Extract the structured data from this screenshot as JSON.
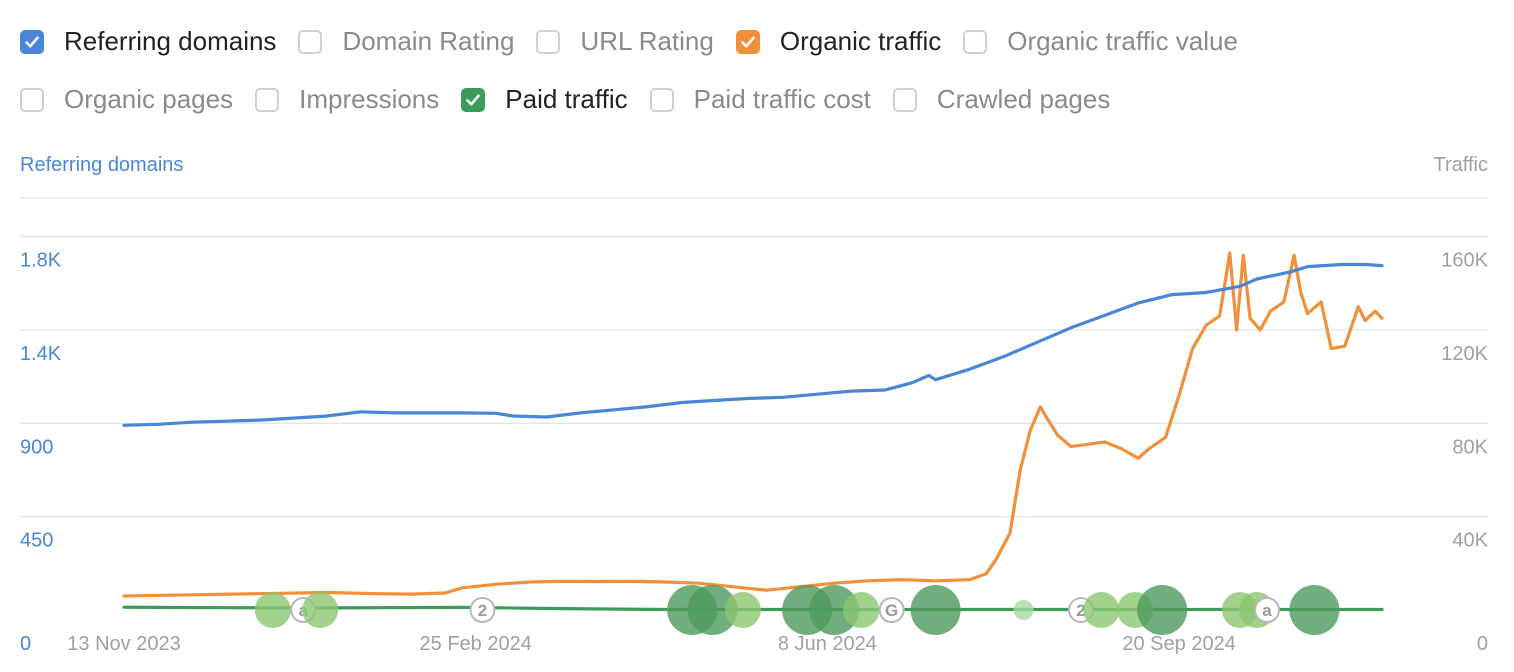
{
  "metrics_row1": [
    {
      "label": "Referring domains",
      "checked": true,
      "color": "#4a86d8"
    },
    {
      "label": "Domain Rating",
      "checked": false,
      "color": "#d0d0d0"
    },
    {
      "label": "URL Rating",
      "checked": false,
      "color": "#d0d0d0"
    },
    {
      "label": "Organic traffic",
      "checked": true,
      "color": "#f0903a"
    },
    {
      "label": "Organic traffic value",
      "checked": false,
      "color": "#d0d0d0"
    }
  ],
  "metrics_row2": [
    {
      "label": "Organic pages",
      "checked": false,
      "color": "#d0d0d0"
    },
    {
      "label": "Impressions",
      "checked": false,
      "color": "#d0d0d0"
    },
    {
      "label": "Paid traffic",
      "checked": true,
      "color": "#3e9a5a"
    },
    {
      "label": "Paid traffic cost",
      "checked": false,
      "color": "#d0d0d0"
    },
    {
      "label": "Crawled pages",
      "checked": false,
      "color": "#d0d0d0"
    }
  ],
  "chart_data": {
    "type": "line",
    "left_axis_title": "Referring domains",
    "right_axis_title": "Traffic",
    "left_ticks": [
      "0",
      "450",
      "900",
      "1.4K",
      "1.8K"
    ],
    "left_tick_values": [
      0,
      450,
      900,
      1350,
      1800
    ],
    "right_ticks": [
      "0",
      "40K",
      "80K",
      "120K",
      "160K"
    ],
    "right_tick_values": [
      0,
      40000,
      80000,
      120000,
      160000
    ],
    "x_ticks": [
      "13 Nov 2023",
      "25 Feb 2024",
      "8 Jun 2024",
      "20 Sep 2024"
    ],
    "x_tick_days": [
      0,
      104,
      208,
      312
    ],
    "x_range_days": [
      -15,
      380
    ],
    "grid": true,
    "colors": {
      "referring_domains": "#4a86d8",
      "organic_traffic": "#f0903a",
      "paid_traffic": "#3e9a5a",
      "left_axis": "#4a86d8",
      "right_axis": "#a0a0a0"
    },
    "series": [
      {
        "name": "Referring domains",
        "axis": "left",
        "color": "#4a86d8",
        "points": [
          [
            0,
            890
          ],
          [
            10,
            895
          ],
          [
            20,
            905
          ],
          [
            30,
            910
          ],
          [
            40,
            915
          ],
          [
            50,
            925
          ],
          [
            60,
            935
          ],
          [
            70,
            955
          ],
          [
            80,
            950
          ],
          [
            90,
            950
          ],
          [
            100,
            950
          ],
          [
            110,
            948
          ],
          [
            115,
            935
          ],
          [
            125,
            930
          ],
          [
            135,
            950
          ],
          [
            145,
            965
          ],
          [
            155,
            980
          ],
          [
            165,
            1000
          ],
          [
            175,
            1010
          ],
          [
            185,
            1020
          ],
          [
            195,
            1025
          ],
          [
            205,
            1040
          ],
          [
            215,
            1055
          ],
          [
            225,
            1060
          ],
          [
            233,
            1095
          ],
          [
            238,
            1130
          ],
          [
            240,
            1110
          ],
          [
            250,
            1160
          ],
          [
            260,
            1220
          ],
          [
            270,
            1290
          ],
          [
            280,
            1360
          ],
          [
            290,
            1420
          ],
          [
            300,
            1480
          ],
          [
            310,
            1520
          ],
          [
            320,
            1530
          ],
          [
            330,
            1560
          ],
          [
            335,
            1595
          ],
          [
            345,
            1630
          ],
          [
            350,
            1655
          ],
          [
            360,
            1665
          ],
          [
            367,
            1665
          ],
          [
            372,
            1660
          ]
        ]
      },
      {
        "name": "Organic traffic",
        "axis": "right",
        "color": "#f0903a",
        "points": [
          [
            0,
            6000
          ],
          [
            20,
            6500
          ],
          [
            40,
            7000
          ],
          [
            60,
            7500
          ],
          [
            75,
            7000
          ],
          [
            85,
            6800
          ],
          [
            95,
            7300
          ],
          [
            100,
            9500
          ],
          [
            110,
            11000
          ],
          [
            120,
            12000
          ],
          [
            130,
            12300
          ],
          [
            140,
            12200
          ],
          [
            150,
            12300
          ],
          [
            160,
            12000
          ],
          [
            170,
            11500
          ],
          [
            183,
            9500
          ],
          [
            190,
            8500
          ],
          [
            200,
            10000
          ],
          [
            210,
            11500
          ],
          [
            220,
            12500
          ],
          [
            230,
            13000
          ],
          [
            240,
            12500
          ],
          [
            250,
            13000
          ],
          [
            255,
            15500
          ],
          [
            258,
            22000
          ],
          [
            262,
            33000
          ],
          [
            265,
            60000
          ],
          [
            268,
            77000
          ],
          [
            271,
            87000
          ],
          [
            273,
            82000
          ],
          [
            276,
            75000
          ],
          [
            280,
            70000
          ],
          [
            285,
            71000
          ],
          [
            290,
            72000
          ],
          [
            295,
            69000
          ],
          [
            300,
            65000
          ],
          [
            303,
            69000
          ],
          [
            308,
            74000
          ],
          [
            312,
            92000
          ],
          [
            316,
            112000
          ],
          [
            320,
            122000
          ],
          [
            324,
            126000
          ],
          [
            327,
            153000
          ],
          [
            329,
            120000
          ],
          [
            331,
            152000
          ],
          [
            333,
            125000
          ],
          [
            336,
            120000
          ],
          [
            339,
            128000
          ],
          [
            343,
            132000
          ],
          [
            346,
            152000
          ],
          [
            348,
            136000
          ],
          [
            350,
            127000
          ],
          [
            354,
            132000
          ],
          [
            357,
            112000
          ],
          [
            361,
            113000
          ],
          [
            365,
            130000
          ],
          [
            367,
            124000
          ],
          [
            370,
            128000
          ],
          [
            372,
            125000
          ]
        ]
      },
      {
        "name": "Paid traffic",
        "axis": "right",
        "color": "#3e9a5a",
        "points": [
          [
            0,
            1200
          ],
          [
            30,
            1000
          ],
          [
            60,
            900
          ],
          [
            100,
            1100
          ],
          [
            130,
            600
          ],
          [
            160,
            200
          ],
          [
            200,
            200
          ],
          [
            240,
            200
          ],
          [
            280,
            200
          ],
          [
            320,
            200
          ],
          [
            372,
            200
          ]
        ]
      }
    ],
    "event_bubbles": [
      {
        "day": 44,
        "size": "medium",
        "tone": "light"
      },
      {
        "day": 53,
        "label": "a",
        "tone": "marker"
      },
      {
        "day": 58,
        "size": "medium",
        "tone": "light"
      },
      {
        "day": 106,
        "label": "2",
        "tone": "marker"
      },
      {
        "day": 168,
        "size": "large",
        "tone": "dark"
      },
      {
        "day": 174,
        "size": "large",
        "tone": "dark"
      },
      {
        "day": 183,
        "size": "medium",
        "tone": "light"
      },
      {
        "day": 202,
        "size": "large",
        "tone": "dark"
      },
      {
        "day": 210,
        "size": "large",
        "tone": "dark"
      },
      {
        "day": 218,
        "size": "medium",
        "tone": "light"
      },
      {
        "day": 227,
        "label": "G",
        "tone": "marker"
      },
      {
        "day": 240,
        "size": "large",
        "tone": "dark"
      },
      {
        "day": 266,
        "size": "small",
        "tone": "faint"
      },
      {
        "day": 283,
        "label": "2",
        "tone": "marker"
      },
      {
        "day": 289,
        "size": "medium",
        "tone": "light"
      },
      {
        "day": 299,
        "size": "medium",
        "tone": "light"
      },
      {
        "day": 307,
        "size": "large",
        "tone": "dark"
      },
      {
        "day": 330,
        "size": "medium",
        "tone": "light"
      },
      {
        "day": 335,
        "size": "medium",
        "tone": "light"
      },
      {
        "day": 338,
        "label": "a",
        "tone": "marker"
      },
      {
        "day": 352,
        "size": "large",
        "tone": "dark"
      }
    ]
  }
}
